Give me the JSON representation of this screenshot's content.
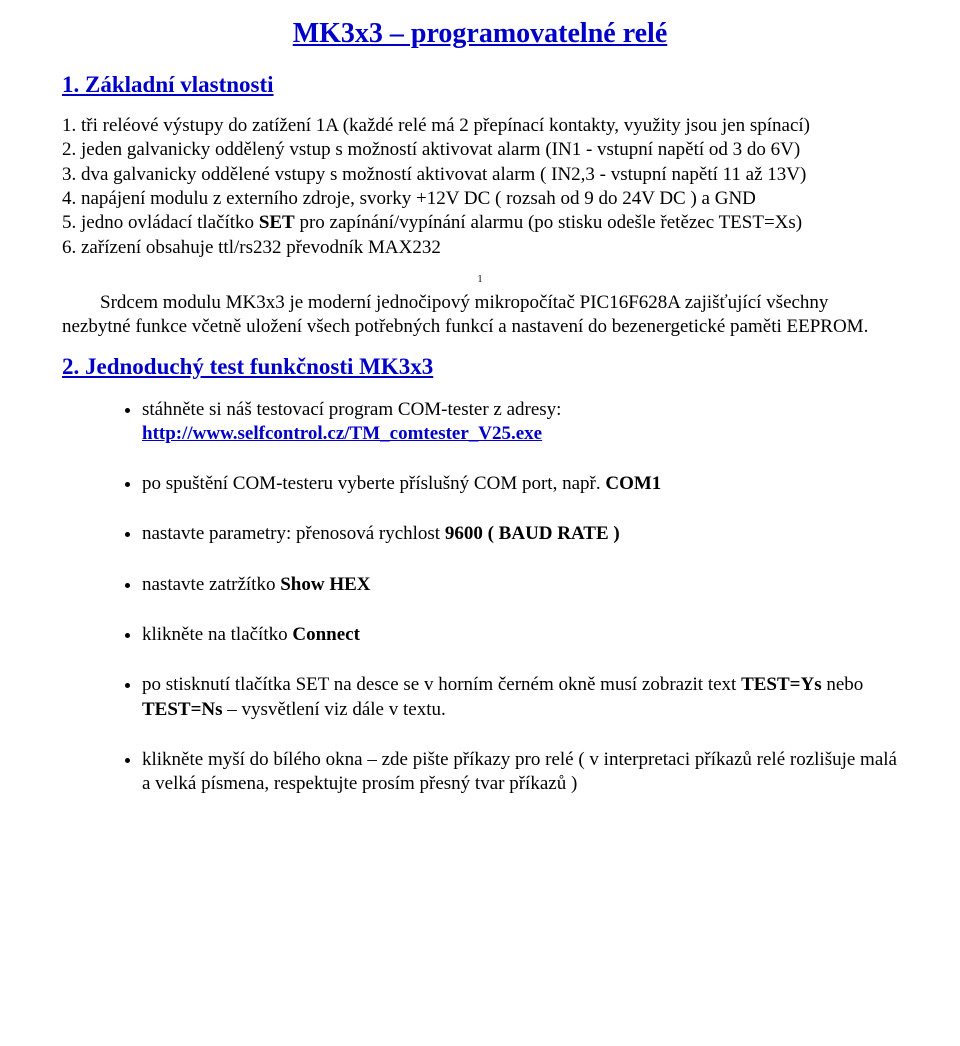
{
  "colors": {
    "heading": "#0000c8",
    "text": "#000000",
    "background": "#ffffff",
    "link": "#0000c8"
  },
  "fonts": {
    "family": "Times New Roman",
    "title_size_pt": 21,
    "h2_size_pt": 17,
    "body_size_pt": 14
  },
  "title": "MK3x3 – programovatelné relé",
  "section1": {
    "heading": "1. Základní vlastnosti",
    "items": [
      "1. tři reléové výstupy do zatížení 1A (každé relé má 2 přepínací kontakty, využity jsou jen spínací)",
      "2. jeden galvanicky oddělený vstup s možností aktivovat alarm (IN1 - vstupní napětí od 3 do 6V)",
      "3. dva galvanicky oddělené vstupy s možností aktivovat alarm ( IN2,3 - vstupní napětí 11 až 13V)",
      "4. napájení modulu z externího zdroje, svorky  +12V DC  ( rozsah od 9 do 24V DC ) a GND",
      "5. jedno ovládací tlačítko SET pro zapínání/vypínání alarmu (po stisku odešle řetězec TEST=Xs)",
      "6. zařízení obsahuje ttl/rs232 převodník MAX232"
    ],
    "bold_in_items": {
      "4": "SET"
    },
    "footnote_marker": "1",
    "paragraph_prefix": "        Srdcem modulu MK3x3 je moderní jednočipový mikropočítač PIC16F628A zajišťující všechny nezbytné funkce včetně uložení všech potřebných funkcí a nastavení do bezenergetické paměti EEPROM."
  },
  "section2": {
    "heading": "2.  Jednoduchý test funkčnosti MK3x3",
    "bullets": [
      {
        "text_before": "stáhněte si náš testovací program COM-tester z adresy:",
        "link_text": "http://www.selfcontrol.cz/TM_comtester_V25.exe",
        "link_href": "http://www.selfcontrol.cz/TM_comtester_V25.exe"
      },
      {
        "text": "po spuštění COM-testeru vyberte příslušný COM port, např. ",
        "bold_tail": "COM1"
      },
      {
        "text": "nastavte parametry: přenosová rychlost ",
        "bold_tail": "9600 ( BAUD RATE )"
      },
      {
        "text": "nastavte zatržítko ",
        "bold_tail": "Show HEX"
      },
      {
        "text": "klikněte na tlačítko ",
        "bold_tail": "Connect"
      },
      {
        "compound": [
          {
            "t": "po stisknutí tlačítka SET na desce se v horním černém okně musí zobrazit text "
          },
          {
            "b": "TEST=Ys"
          },
          {
            "t": " nebo "
          },
          {
            "b": "TEST=Ns"
          },
          {
            "t": " – vysvětlení viz dále v textu."
          }
        ]
      },
      {
        "text": "klikněte myší do bílého okna – zde pište příkazy pro relé ( v interpretaci příkazů relé rozlišuje malá a velká písmena, respektujte prosím přesný tvar příkazů )"
      }
    ]
  }
}
